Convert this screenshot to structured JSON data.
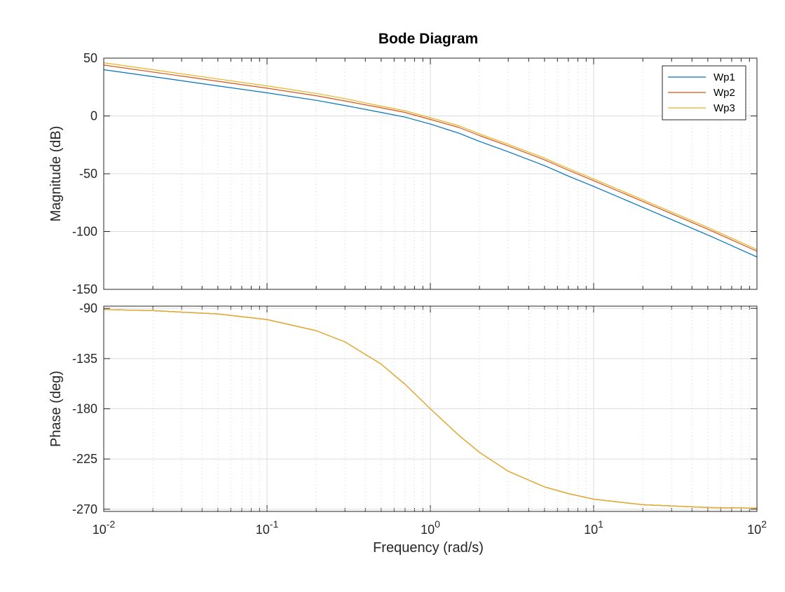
{
  "chart_data": {
    "type": "line",
    "title": "Bode Diagram",
    "xlabel": "Frequency  (rad/s)",
    "x_scale": "log",
    "xlim": [
      0.01,
      100
    ],
    "x_ticks": [
      {
        "base": "10",
        "exp": "-2"
      },
      {
        "base": "10",
        "exp": "-1"
      },
      {
        "base": "10",
        "exp": "0"
      },
      {
        "base": "10",
        "exp": "1"
      },
      {
        "base": "10",
        "exp": "2"
      }
    ],
    "grid": true,
    "legend_position": "top-right",
    "subplots": [
      {
        "name": "magnitude",
        "ylabel": "Magnitude (dB)",
        "ylim": [
          -150,
          50
        ],
        "y_ticks": [
          "50",
          "0",
          "-50",
          "-100",
          "-150"
        ],
        "series": [
          {
            "name": "Wp1",
            "color": "#0072BD",
            "x": [
              0.01,
              0.02,
              0.05,
              0.1,
              0.2,
              0.3,
              0.5,
              0.7,
              1,
              1.5,
              2,
              3,
              5,
              7,
              10,
              20,
              50,
              100
            ],
            "y": [
              40,
              34,
              26,
              20,
              13.5,
              9,
              3,
              -1,
              -7,
              -15,
              -22,
              -31,
              -43,
              -52,
              -61,
              -79,
              -103,
              -122
            ]
          },
          {
            "name": "Wp2",
            "color": "#D95319",
            "x": [
              0.01,
              0.02,
              0.05,
              0.1,
              0.2,
              0.3,
              0.5,
              0.7,
              1,
              1.5,
              2,
              3,
              5,
              7,
              10,
              20,
              50,
              100
            ],
            "y": [
              44,
              38,
              30,
              24,
              17.5,
              13,
              7,
              3,
              -3,
              -10,
              -17,
              -26,
              -38,
              -47,
              -56,
              -74,
              -98,
              -117
            ]
          },
          {
            "name": "Wp3",
            "color": "#EDB120",
            "x": [
              0.01,
              0.02,
              0.05,
              0.1,
              0.2,
              0.3,
              0.5,
              0.7,
              1,
              1.5,
              2,
              3,
              5,
              7,
              10,
              20,
              50,
              100
            ],
            "y": [
              46,
              40,
              32,
              26,
              19.5,
              15,
              8.5,
              4.5,
              -1.5,
              -8.5,
              -15.5,
              -24.5,
              -36.5,
              -45.5,
              -54.5,
              -72.5,
              -96.5,
              -115.5
            ]
          }
        ]
      },
      {
        "name": "phase",
        "ylabel": "Phase (deg)",
        "ylim": [
          -272,
          -88
        ],
        "y_ticks": [
          "-90",
          "-135",
          "-180",
          "-225",
          "-270"
        ],
        "series": [
          {
            "name": "Wp1",
            "color": "#0072BD",
            "x": [
              0.01,
              0.02,
              0.05,
              0.1,
              0.2,
              0.3,
              0.5,
              0.7,
              1,
              1.5,
              2,
              3,
              5,
              7,
              10,
              20,
              50,
              100
            ],
            "y": [
              -91,
              -92,
              -95,
              -100,
              -110,
              -120,
              -140,
              -158,
              -180,
              -204,
              -219,
              -236,
              -250,
              -256,
              -261,
              -266,
              -268.5,
              -269
            ]
          },
          {
            "name": "Wp2",
            "color": "#D95319",
            "x": [
              0.01,
              0.02,
              0.05,
              0.1,
              0.2,
              0.3,
              0.5,
              0.7,
              1,
              1.5,
              2,
              3,
              5,
              7,
              10,
              20,
              50,
              100
            ],
            "y": [
              -91,
              -92,
              -95,
              -100,
              -110,
              -120,
              -140,
              -158,
              -180,
              -204,
              -219,
              -236,
              -250,
              -256,
              -261,
              -266,
              -268.5,
              -269
            ]
          },
          {
            "name": "Wp3",
            "color": "#EDB120",
            "x": [
              0.01,
              0.02,
              0.05,
              0.1,
              0.2,
              0.3,
              0.5,
              0.7,
              1,
              1.5,
              2,
              3,
              5,
              7,
              10,
              20,
              50,
              100
            ],
            "y": [
              -91,
              -92,
              -95,
              -100,
              -110,
              -120,
              -140,
              -158,
              -180,
              -204,
              -219,
              -236,
              -250,
              -256,
              -261,
              -266,
              -268.5,
              -269
            ]
          }
        ]
      }
    ]
  }
}
